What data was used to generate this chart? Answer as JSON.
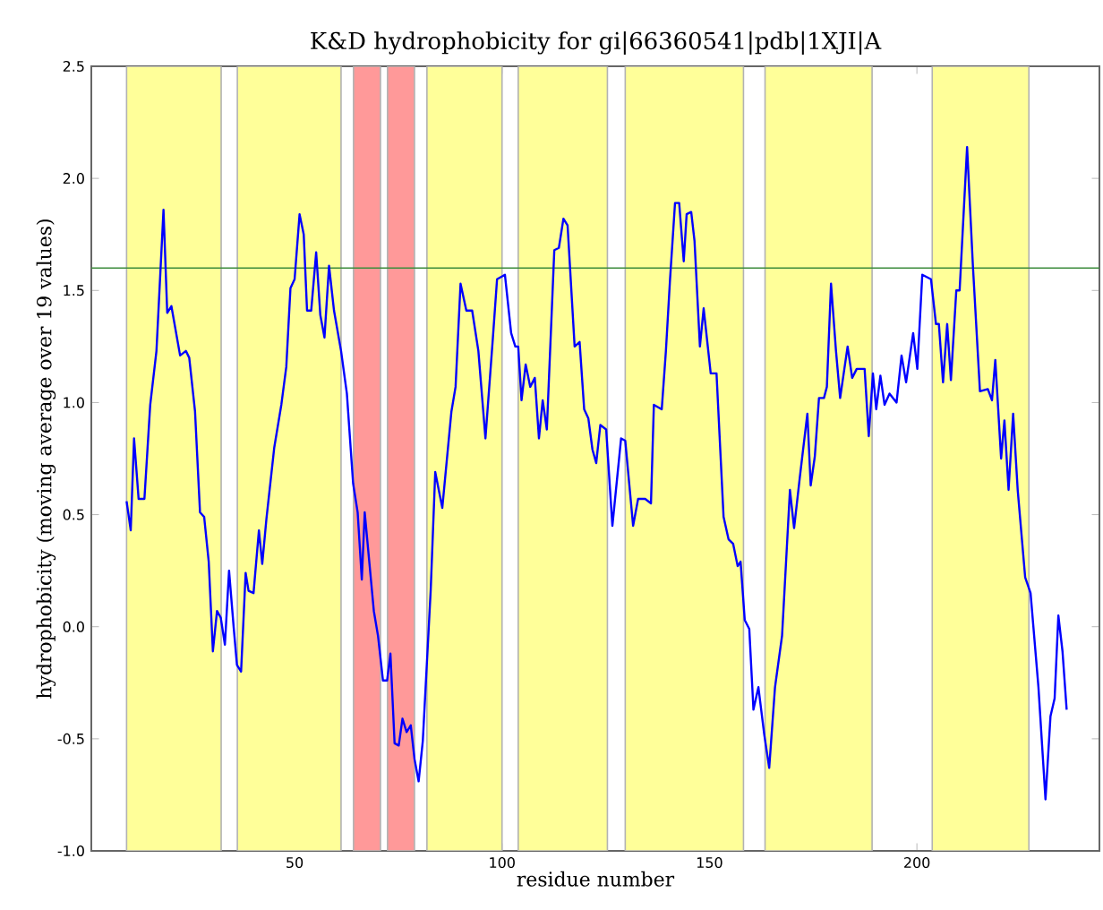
{
  "chart_data": {
    "type": "line",
    "title": "K&D hydrophobicity for gi|66360541|pdb|1XJI|A",
    "xlabel": "residue number",
    "ylabel": "hydrophobicity (moving average over 19 values)",
    "xlim": [
      1,
      244
    ],
    "ylim": [
      -1.0,
      2.5
    ],
    "xticks": [
      50,
      100,
      150,
      200
    ],
    "yticks": [
      {
        "value": -1.0,
        "label": "-1.0"
      },
      {
        "value": -0.5,
        "label": "-0.5"
      },
      {
        "value": 0.0,
        "label": "0.0"
      },
      {
        "value": 0.5,
        "label": "0.5"
      },
      {
        "value": 1.0,
        "label": "1.0"
      },
      {
        "value": 1.5,
        "label": "1.5"
      },
      {
        "value": 2.0,
        "label": "2.0"
      },
      {
        "value": 2.5,
        "label": "2.5"
      }
    ],
    "grid": false,
    "marker": "none",
    "line_style": "solid",
    "x": [
      9.5,
      10.5,
      11.3,
      12.4,
      13.8,
      15.2,
      16.7,
      18.4,
      19.3,
      20.3,
      22.4,
      23.8,
      24.6,
      26,
      27.2,
      28.2,
      29.3,
      30.3,
      31.3,
      32.2,
      33.2,
      34.2,
      35.3,
      36.1,
      37.1,
      38.2,
      38.9,
      40.1,
      41.4,
      42.2,
      43.2,
      45.1,
      46.8,
      48,
      49,
      50,
      51.2,
      52.2,
      53,
      54,
      55.2,
      56.2,
      57.2,
      58.3,
      59.5,
      61.2,
      62.6,
      64.1,
      65.2,
      66.2,
      66.9,
      68.1,
      69.1,
      70.1,
      71.3,
      72.3,
      73.1,
      74.1,
      75.1,
      76,
      77,
      78,
      78.9,
      79.9,
      80.9,
      82.8,
      83.9,
      85.6,
      87.8,
      88.8,
      90,
      91.4,
      92.8,
      94.3,
      96,
      97.8,
      98.8,
      100.7,
      102.2,
      103.2,
      103.9,
      104.7,
      105.7,
      106.8,
      107.9,
      108.9,
      109.8,
      110.8,
      112.6,
      113.7,
      114.8,
      115.8,
      117.5,
      118.7,
      119.8,
      120.8,
      121.8,
      122.7,
      123.7,
      125.1,
      126.6,
      128.7,
      129.7,
      131.6,
      132.8,
      134.5,
      135.9,
      136.6,
      138.5,
      139.5,
      140.5,
      141.7,
      142.7,
      143.8,
      144.5,
      145.6,
      146.4,
      147.7,
      148.6,
      150.3,
      151.7,
      153.4,
      154.6,
      155.7,
      156.8,
      157.5,
      158.5,
      159.6,
      160.6,
      161.8,
      163.2,
      164.4,
      165.8,
      167.5,
      169.4,
      170.4,
      171.8,
      173.6,
      174.4,
      175.4,
      176.4,
      177.6,
      178.3,
      179.3,
      180.5,
      181.5,
      183.3,
      184.4,
      185.5,
      187.4,
      188.4,
      189.4,
      190.2,
      191.2,
      192.2,
      193.4,
      195.1,
      196.3,
      197.4,
      199.1,
      200.1,
      201.3,
      203.4,
      204.6,
      205.3,
      206.3,
      207.3,
      208.2,
      209.5,
      210.3,
      212.1,
      213.5,
      215.2,
      217.1,
      218.1,
      218.9,
      220.3,
      221.1,
      222.1,
      223.2,
      224.3,
      226.1,
      227.4,
      229.3,
      231,
      232.2,
      233.2,
      234.1,
      235.1,
      236.1
    ],
    "series": [
      {
        "color": "#0000ff",
        "values": [
          0.56,
          0.43,
          0.84,
          0.57,
          0.57,
          0.99,
          1.23,
          1.86,
          1.4,
          1.43,
          1.21,
          1.23,
          1.2,
          0.96,
          0.51,
          0.49,
          0.29,
          -0.11,
          0.07,
          0.04,
          -0.08,
          0.25,
          0.0,
          -0.17,
          -0.2,
          0.24,
          0.16,
          0.15,
          0.43,
          0.28,
          0.48,
          0.8,
          0.99,
          1.16,
          1.51,
          1.55,
          1.84,
          1.75,
          1.41,
          1.41,
          1.67,
          1.39,
          1.29,
          1.61,
          1.41,
          1.23,
          1.04,
          0.64,
          0.51,
          0.21,
          0.51,
          0.27,
          0.07,
          -0.04,
          -0.24,
          -0.24,
          -0.12,
          -0.52,
          -0.53,
          -0.41,
          -0.47,
          -0.44,
          -0.59,
          -0.69,
          -0.51,
          0.16,
          0.69,
          0.53,
          0.96,
          1.07,
          1.53,
          1.41,
          1.41,
          1.23,
          0.84,
          1.29,
          1.55,
          1.57,
          1.31,
          1.25,
          1.25,
          1.01,
          1.17,
          1.07,
          1.11,
          0.84,
          1.01,
          0.88,
          1.68,
          1.69,
          1.82,
          1.79,
          1.25,
          1.27,
          0.97,
          0.93,
          0.79,
          0.73,
          0.9,
          0.88,
          0.45,
          0.84,
          0.83,
          0.45,
          0.57,
          0.57,
          0.55,
          0.99,
          0.97,
          1.23,
          1.55,
          1.89,
          1.89,
          1.63,
          1.84,
          1.85,
          1.72,
          1.25,
          1.42,
          1.13,
          1.13,
          0.49,
          0.39,
          0.37,
          0.27,
          0.29,
          0.03,
          -0.01,
          -0.37,
          -0.27,
          -0.48,
          -0.63,
          -0.27,
          -0.04,
          0.61,
          0.44,
          0.67,
          0.95,
          0.63,
          0.76,
          1.02,
          1.02,
          1.07,
          1.53,
          1.23,
          1.02,
          1.25,
          1.11,
          1.15,
          1.15,
          0.85,
          1.13,
          0.97,
          1.12,
          0.99,
          1.04,
          1.0,
          1.21,
          1.09,
          1.31,
          1.15,
          1.57,
          1.55,
          1.35,
          1.35,
          1.09,
          1.35,
          1.1,
          1.5,
          1.5,
          2.14,
          1.61,
          1.05,
          1.06,
          1.01,
          1.19,
          0.75,
          0.92,
          0.61,
          0.95,
          0.61,
          0.22,
          0.15,
          -0.27,
          -0.77,
          -0.4,
          -0.32,
          0.05,
          -0.11,
          -0.37
        ]
      }
    ],
    "ref_lines": [
      {
        "axis": "y",
        "value": 1.6,
        "color": "#3c8c3c"
      }
    ],
    "bands": [
      {
        "axis": "x",
        "from": 9.5,
        "to": 32.3,
        "color": "#ffff99"
      },
      {
        "axis": "x",
        "from": 36.2,
        "to": 61.2,
        "color": "#ffff99"
      },
      {
        "axis": "x",
        "from": 64.2,
        "to": 70.7,
        "color": "#ff9999"
      },
      {
        "axis": "x",
        "from": 72.4,
        "to": 78.9,
        "color": "#ff9999"
      },
      {
        "axis": "x",
        "from": 81.9,
        "to": 100,
        "color": "#ffff99"
      },
      {
        "axis": "x",
        "from": 103.9,
        "to": 125.4,
        "color": "#ffff99"
      },
      {
        "axis": "x",
        "from": 129.7,
        "to": 158.2,
        "color": "#ffff99"
      },
      {
        "axis": "x",
        "from": 163.4,
        "to": 189.2,
        "color": "#ffff99"
      },
      {
        "axis": "x",
        "from": 203.7,
        "to": 227,
        "color": "#ffff99"
      }
    ]
  }
}
